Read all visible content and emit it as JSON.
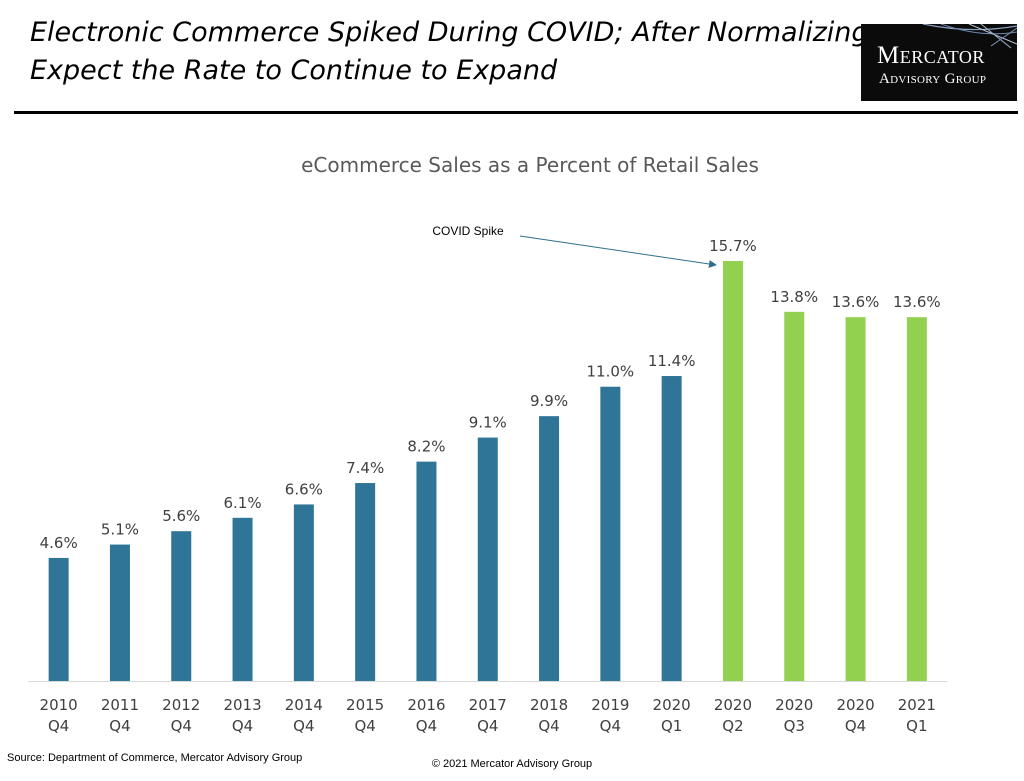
{
  "slide": {
    "title_line1": "Electronic Commerce Spiked During COVID; After Normalizing,",
    "title_line2": "Expect the Rate to Continue to Expand",
    "logo_line1": "Mercator",
    "logo_line2": "Advisory Group",
    "source": "Source: Department of Commerce, Mercator Advisory Group",
    "copyright": "© 2021 Mercator Advisory Group"
  },
  "colors": {
    "pre_covid_bar": "#2e7597",
    "covid_bar": "#92d050",
    "annotation_arrow": "#2e6f8e",
    "label_text": "#404040"
  },
  "chart_data": {
    "type": "bar",
    "title": "eCommerce Sales as a Percent of Retail Sales",
    "xlabel": "",
    "ylabel": "",
    "ylim": [
      0,
      17
    ],
    "grid": false,
    "legend": "none",
    "categories": [
      [
        "2010",
        "Q4"
      ],
      [
        "2011",
        "Q4"
      ],
      [
        "2012",
        "Q4"
      ],
      [
        "2013",
        "Q4"
      ],
      [
        "2014",
        "Q4"
      ],
      [
        "2015",
        "Q4"
      ],
      [
        "2016",
        "Q4"
      ],
      [
        "2017",
        "Q4"
      ],
      [
        "2018",
        "Q4"
      ],
      [
        "2019",
        "Q4"
      ],
      [
        "2020",
        "Q1"
      ],
      [
        "2020",
        "Q2"
      ],
      [
        "2020",
        "Q3"
      ],
      [
        "2020",
        "Q4"
      ],
      [
        "2021",
        "Q1"
      ]
    ],
    "values": [
      4.6,
      5.1,
      5.6,
      6.1,
      6.6,
      7.4,
      8.2,
      9.1,
      9.9,
      11.0,
      11.4,
      15.7,
      13.8,
      13.6,
      13.6
    ],
    "value_labels": [
      "4.6%",
      "5.1%",
      "5.6%",
      "6.1%",
      "6.6%",
      "7.4%",
      "8.2%",
      "9.1%",
      "9.9%",
      "11.0%",
      "11.4%",
      "15.7%",
      "13.8%",
      "13.6%",
      "13.6%"
    ],
    "covid_period": [
      false,
      false,
      false,
      false,
      false,
      false,
      false,
      false,
      false,
      false,
      false,
      true,
      true,
      true,
      true
    ],
    "annotations": [
      {
        "text": "COVID Spike",
        "target_category": 11
      }
    ]
  }
}
